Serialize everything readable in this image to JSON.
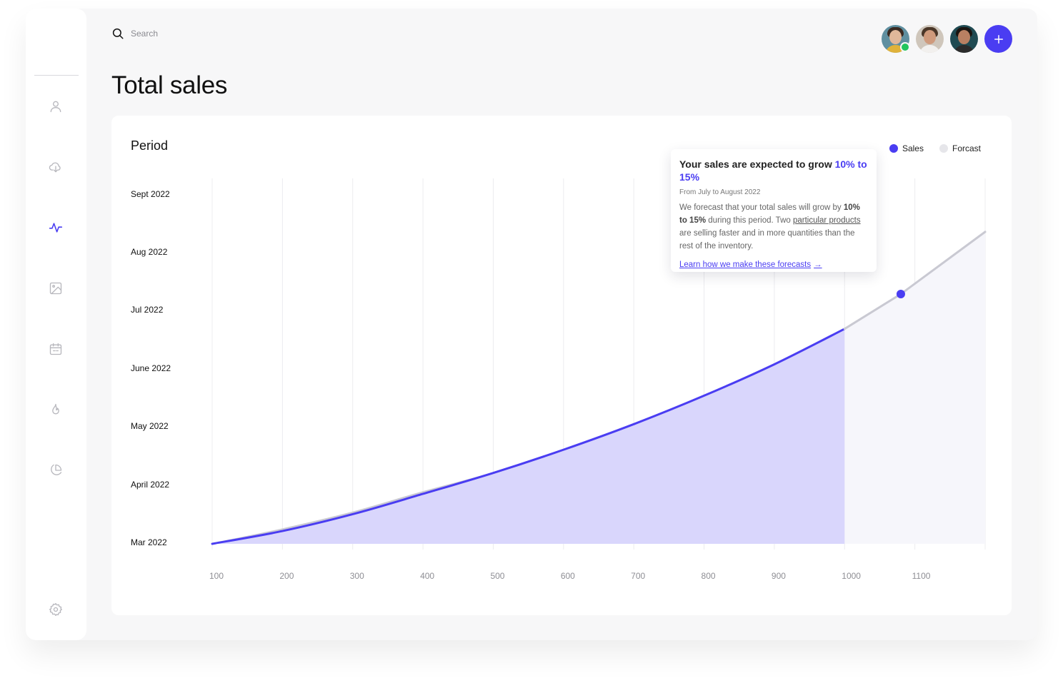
{
  "search": {
    "placeholder": "Search"
  },
  "header": {
    "title": "Total sales"
  },
  "colors": {
    "accent": "#4a3df2",
    "sales_fill": "#d9d6fc",
    "forecast_line": "#c9c9d2",
    "forecast_fill": "#f6f6fb"
  },
  "sidebar": {
    "icons": [
      "user-icon",
      "cloud-download-icon",
      "activity-icon",
      "image-icon",
      "calendar-icon",
      "flame-icon",
      "pie-chart-icon",
      "settings-icon"
    ],
    "active": "activity-icon"
  },
  "card": {
    "label": "Period"
  },
  "legend": {
    "sales": "Sales",
    "forecast": "Forcast"
  },
  "tooltip": {
    "title_prefix": "Your sales are expected to grow ",
    "title_highlight": "10% to 15%",
    "date_range": "From July to August 2022",
    "body_prefix": "We forecast that your total sales will grow by ",
    "body_bold": "10% to 15%",
    "body_middle": " during this period. Two ",
    "body_link": "particular products",
    "body_suffix": " are selling faster and in more quantities than the rest of the inventory.",
    "link": "Learn how we make these forecasts",
    "link_arrow": "→"
  },
  "chart_data": {
    "type": "area",
    "x_ticks": [
      100,
      200,
      300,
      400,
      500,
      600,
      700,
      800,
      900,
      1000,
      1100
    ],
    "y_ticks": [
      "Mar 2022",
      "April 2022",
      "May 2022",
      "June 2022",
      "Jul 2022",
      "Aug 2022",
      "Sept 2022"
    ],
    "xlim": [
      100,
      1200
    ],
    "series": [
      {
        "name": "Sales",
        "x": [
          100,
          200,
          300,
          400,
          500,
          600,
          700,
          800,
          900,
          1000
        ],
        "y": [
          0,
          0.22,
          0.51,
          0.86,
          1.22,
          1.62,
          2.06,
          2.55,
          3.09,
          3.7
        ]
      },
      {
        "name": "Forcast",
        "x": [
          1000,
          1080,
          1200
        ],
        "y": [
          3.7,
          4.3,
          5.37
        ]
      }
    ],
    "highlight_point": {
      "x": 1080,
      "y": 4.3
    }
  }
}
